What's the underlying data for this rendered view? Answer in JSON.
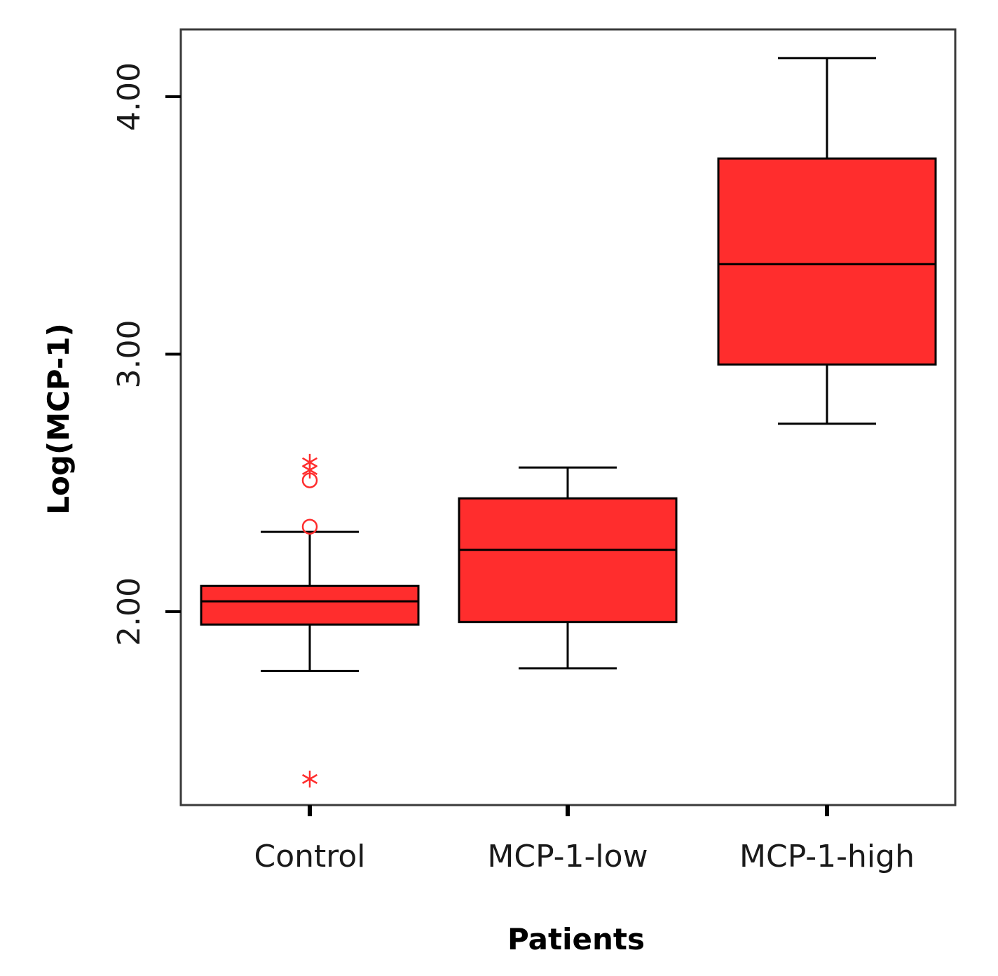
{
  "chart_data": {
    "type": "boxplot",
    "title": "",
    "xlabel": "Patients",
    "ylabel": "Log(MCP-1)",
    "ylim": [
      1.25,
      4.26
    ],
    "yticks": [
      2.0,
      3.0,
      4.0
    ],
    "ytick_labels": [
      "2.00",
      "3.00",
      "4.00"
    ],
    "grid": false,
    "colors": {
      "box_fill": "#ff2d2d",
      "outlier": "#ff2d2d",
      "line": "#000000"
    },
    "categories": [
      "Control",
      "MCP-1-low",
      "MCP-1-high"
    ],
    "series": [
      {
        "name": "Control",
        "whisker_low": 1.77,
        "q1": 1.95,
        "median": 2.04,
        "q3": 2.1,
        "whisker_high": 2.31,
        "outliers": [
          {
            "value": 2.58,
            "marker": "star"
          },
          {
            "value": 2.55,
            "marker": "star"
          },
          {
            "value": 2.51,
            "marker": "circle"
          },
          {
            "value": 2.33,
            "marker": "circle"
          },
          {
            "value": 1.35,
            "marker": "star"
          }
        ]
      },
      {
        "name": "MCP-1-low",
        "whisker_low": 1.78,
        "q1": 1.96,
        "median": 2.24,
        "q3": 2.44,
        "whisker_high": 2.56,
        "outliers": []
      },
      {
        "name": "MCP-1-high",
        "whisker_low": 2.73,
        "q1": 2.96,
        "median": 3.35,
        "q3": 3.76,
        "whisker_high": 4.15,
        "outliers": []
      }
    ]
  }
}
